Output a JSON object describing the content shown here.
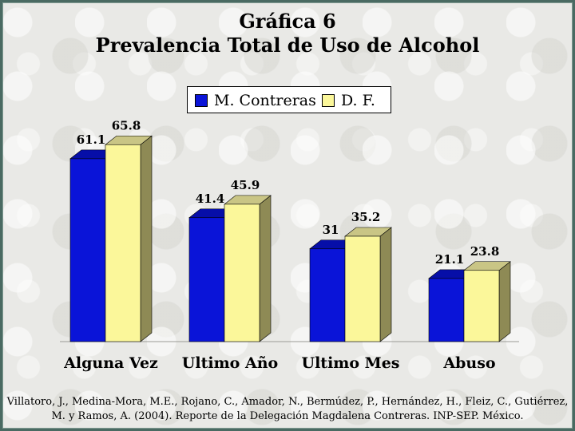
{
  "title": {
    "line1": "Gráfica 6",
    "line2": "Prevalencia Total de Uso de Alcohol"
  },
  "legend": {
    "items": [
      {
        "label": "M. Contreras",
        "color": "#0a14d8"
      },
      {
        "label": "D. F.",
        "color": "#fbf79a"
      }
    ]
  },
  "chart_data": {
    "type": "bar",
    "categories": [
      "Alguna Vez",
      "Ultimo Año",
      "Ultimo Mes",
      "Abuso"
    ],
    "series": [
      {
        "name": "M. Contreras",
        "values": [
          61.1,
          41.4,
          31,
          21.1
        ],
        "labels": [
          "61.1",
          "41.4",
          "31",
          "21.1"
        ],
        "color": "#0a14d8"
      },
      {
        "name": "D. F.",
        "values": [
          65.8,
          45.9,
          35.2,
          23.8
        ],
        "labels": [
          "65.8",
          "45.9",
          "35.2",
          "23.8"
        ],
        "color": "#fbf79a"
      }
    ],
    "ylim": [
      0,
      70
    ],
    "legend_position": "top-center",
    "grid": false,
    "style": "3d-bar"
  },
  "citation": {
    "line1": "Villatoro, J., Medina-Mora, M.E., Rojano, C., Amador, N., Bermúdez, P., Hernández, H., Fleiz, C., Gutiérrez,",
    "line2": "M. y Ramos, A. (2004). Reporte de la Delegación Magdalena Contreras. INP-SEP. México."
  }
}
